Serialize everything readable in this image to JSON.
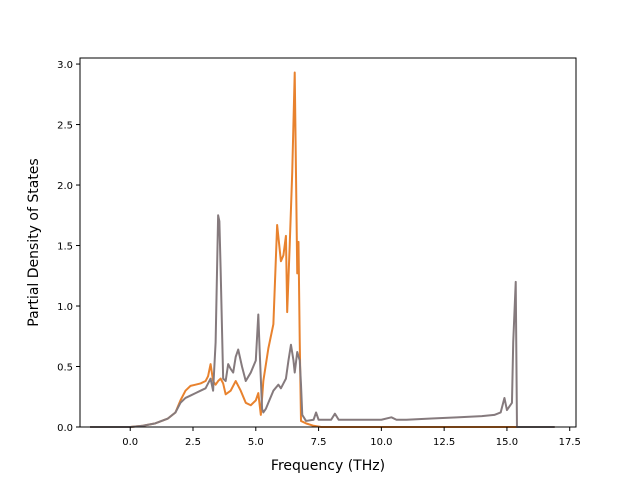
{
  "chart_data": {
    "type": "line",
    "title": "",
    "xlabel": "Frequency (THz)",
    "ylabel": "Partial Density of States",
    "xlim": [
      -2.0,
      17.75
    ],
    "ylim": [
      0.0,
      3.05
    ],
    "xticks": [
      "0.0",
      "2.5",
      "5.0",
      "7.5",
      "10.0",
      "12.5",
      "15.0",
      "17.5"
    ],
    "xtick_values": [
      0.0,
      2.5,
      5.0,
      7.5,
      10.0,
      12.5,
      15.0,
      17.5
    ],
    "yticks": [
      "0.0",
      "0.5",
      "1.0",
      "1.5",
      "2.0",
      "2.5",
      "3.0"
    ],
    "ytick_values": [
      0.0,
      0.5,
      1.0,
      1.5,
      2.0,
      2.5,
      3.0
    ],
    "grid": false,
    "legend": "none",
    "series": [
      {
        "color": "#e8822e",
        "x": [
          -1.6,
          0.0,
          0.5,
          1.0,
          1.5,
          1.8,
          2.0,
          2.2,
          2.4,
          2.6,
          2.8,
          3.0,
          3.1,
          3.2,
          3.3,
          3.4,
          3.5,
          3.6,
          3.7,
          3.8,
          4.0,
          4.2,
          4.4,
          4.6,
          4.8,
          5.0,
          5.1,
          5.2,
          5.3,
          5.5,
          5.7,
          5.85,
          6.0,
          6.1,
          6.2,
          6.25,
          6.35,
          6.45,
          6.55,
          6.6,
          6.65,
          6.7,
          6.75,
          6.8,
          7.0,
          7.3,
          7.6,
          8.0,
          9.0,
          10.0,
          11.0,
          12.0,
          13.0,
          14.0,
          15.0,
          15.2,
          15.35,
          15.4,
          16.9
        ],
        "y": [
          0.0,
          0.0,
          0.01,
          0.03,
          0.07,
          0.12,
          0.22,
          0.3,
          0.34,
          0.35,
          0.36,
          0.38,
          0.42,
          0.52,
          0.38,
          0.35,
          0.38,
          0.4,
          0.36,
          0.27,
          0.3,
          0.38,
          0.3,
          0.2,
          0.18,
          0.22,
          0.28,
          0.1,
          0.38,
          0.65,
          0.85,
          1.67,
          1.37,
          1.42,
          1.58,
          0.95,
          1.5,
          2.1,
          2.93,
          2.1,
          1.27,
          1.53,
          0.7,
          0.05,
          0.03,
          0.01,
          0.0,
          0.0,
          0.0,
          0.0,
          0.0,
          0.0,
          0.0,
          0.0,
          0.0,
          0.0,
          0.0,
          0.0,
          0.0
        ]
      },
      {
        "color": "#857a7d",
        "x": [
          -1.6,
          0.0,
          0.5,
          1.0,
          1.5,
          1.8,
          2.0,
          2.2,
          2.4,
          2.6,
          2.8,
          3.0,
          3.1,
          3.2,
          3.3,
          3.4,
          3.5,
          3.55,
          3.6,
          3.7,
          3.8,
          3.9,
          4.0,
          4.1,
          4.2,
          4.3,
          4.45,
          4.6,
          4.8,
          5.0,
          5.1,
          5.15,
          5.25,
          5.3,
          5.4,
          5.5,
          5.7,
          5.9,
          6.0,
          6.2,
          6.3,
          6.4,
          6.5,
          6.55,
          6.65,
          6.75,
          6.8,
          6.85,
          7.0,
          7.3,
          7.4,
          7.5,
          7.7,
          8.0,
          8.15,
          8.3,
          9.0,
          10.0,
          10.4,
          10.6,
          11.0,
          12.0,
          13.0,
          14.0,
          14.5,
          14.75,
          14.9,
          15.0,
          15.1,
          15.2,
          15.25,
          15.35,
          15.4,
          16.9
        ],
        "y": [
          0.0,
          0.0,
          0.01,
          0.03,
          0.07,
          0.12,
          0.2,
          0.24,
          0.26,
          0.28,
          0.3,
          0.32,
          0.36,
          0.4,
          0.3,
          0.7,
          1.75,
          1.7,
          1.3,
          0.4,
          0.38,
          0.52,
          0.48,
          0.45,
          0.58,
          0.64,
          0.5,
          0.38,
          0.45,
          0.55,
          0.93,
          0.65,
          0.15,
          0.12,
          0.15,
          0.2,
          0.3,
          0.35,
          0.32,
          0.4,
          0.55,
          0.68,
          0.55,
          0.45,
          0.62,
          0.55,
          0.35,
          0.1,
          0.05,
          0.06,
          0.12,
          0.06,
          0.06,
          0.06,
          0.11,
          0.06,
          0.06,
          0.06,
          0.08,
          0.06,
          0.06,
          0.07,
          0.08,
          0.09,
          0.1,
          0.12,
          0.24,
          0.14,
          0.17,
          0.2,
          0.7,
          1.2,
          0.0,
          0.0
        ]
      }
    ]
  }
}
